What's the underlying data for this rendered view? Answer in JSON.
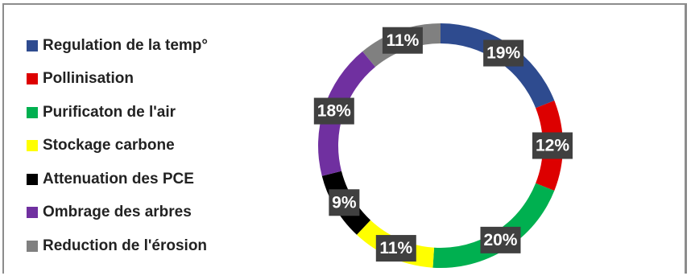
{
  "chart_data": {
    "type": "pie",
    "subtype": "donut",
    "title": "",
    "legend_position": "left",
    "categories": [
      "Regulation de la temp°",
      "Pollinisation",
      "Purificaton de l'air",
      "Stockage carbone",
      "Attenuation des PCE",
      "Ombrage des arbres",
      "Reduction de l'érosion"
    ],
    "values": [
      19,
      12,
      20,
      11,
      9,
      18,
      11
    ],
    "labels": [
      "19%",
      "12%",
      "20%",
      "11%",
      "9%",
      "18%",
      "11%"
    ],
    "colors": [
      "#2E4B8F",
      "#DD0000",
      "#00B050",
      "#FFFF00",
      "#000000",
      "#7030A0",
      "#808080"
    ]
  }
}
